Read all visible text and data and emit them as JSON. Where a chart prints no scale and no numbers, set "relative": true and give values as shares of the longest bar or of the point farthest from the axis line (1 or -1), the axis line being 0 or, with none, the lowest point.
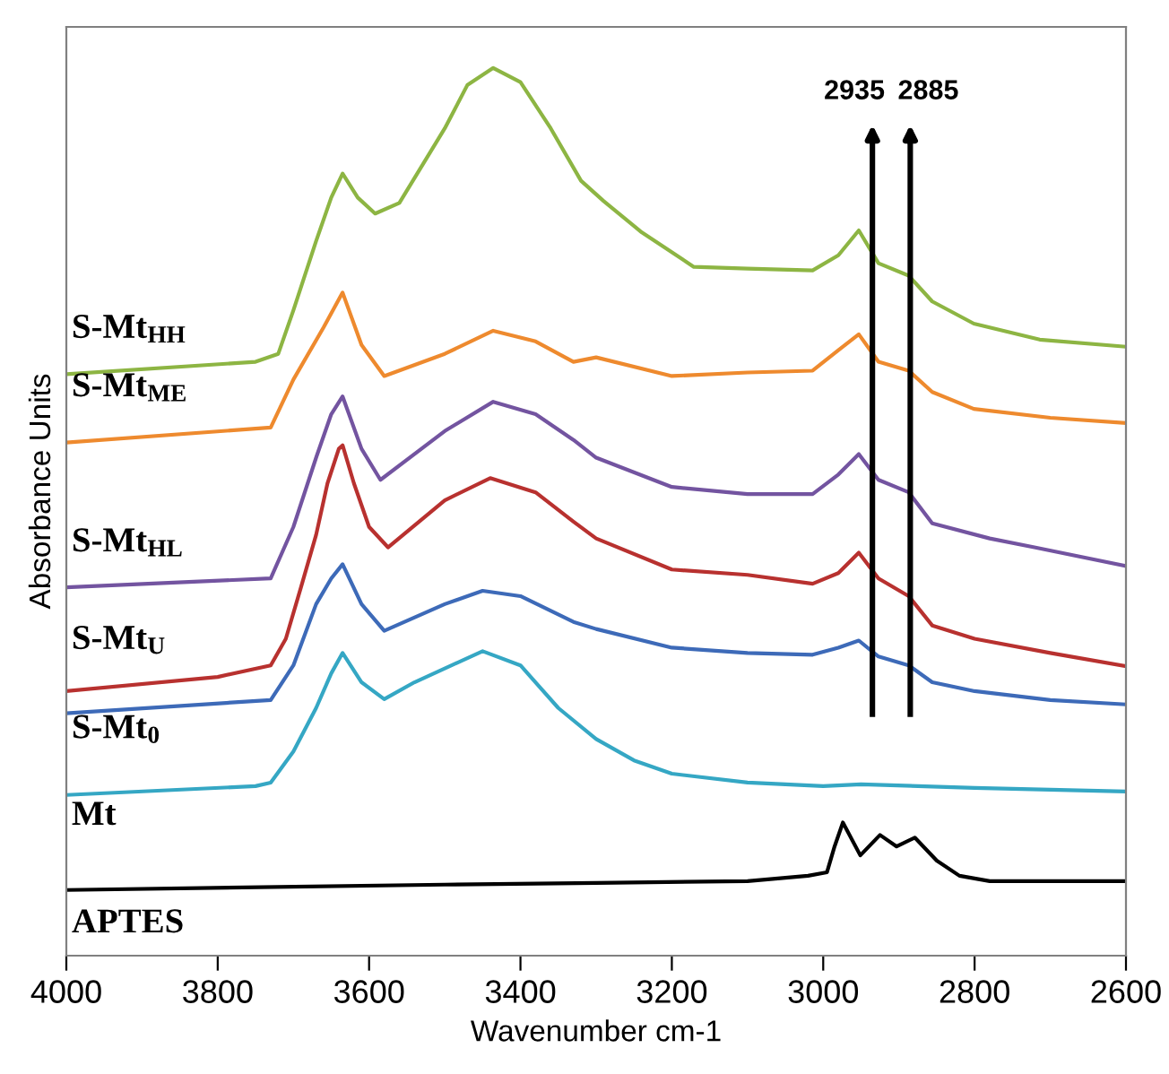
{
  "chart_data": {
    "type": "line",
    "relative": true,
    "xlabel": "Wavenumber cm-1",
    "ylabel": "Absorbance Units",
    "xlim": [
      4000,
      2600
    ],
    "xticks": [
      4000,
      3800,
      3600,
      3400,
      3200,
      3000,
      2800,
      2600
    ],
    "tick_labels": "x",
    "grid": false,
    "marker": "none",
    "line_style": "solid",
    "series": [
      {
        "color": "#8db543",
        "x": [
          4000,
          3750,
          3720,
          3700,
          3670,
          3650,
          3635,
          3615,
          3592,
          3560,
          3500,
          3470,
          3436,
          3400,
          3360,
          3320,
          3290,
          3240,
          3171,
          3100,
          3014,
          2980,
          2953,
          2927,
          2887,
          2856,
          2801,
          2714,
          2600
        ],
        "values": [
          0.655,
          0.669,
          0.678,
          0.727,
          0.805,
          0.854,
          0.881,
          0.854,
          0.836,
          0.848,
          0.932,
          0.981,
          1.0,
          0.984,
          0.932,
          0.873,
          0.85,
          0.815,
          0.776,
          0.774,
          0.772,
          0.789,
          0.817,
          0.78,
          0.766,
          0.737,
          0.712,
          0.694,
          0.686
        ]
      },
      {
        "color": "#ee8a2e",
        "x": [
          4000,
          3730,
          3700,
          3660,
          3635,
          3610,
          3580,
          3500,
          3436,
          3380,
          3330,
          3300,
          3200,
          3100,
          3014,
          2980,
          2953,
          2927,
          2887,
          2856,
          2801,
          2700,
          2600
        ],
        "values": [
          0.578,
          0.595,
          0.649,
          0.708,
          0.747,
          0.688,
          0.653,
          0.678,
          0.704,
          0.692,
          0.669,
          0.674,
          0.653,
          0.657,
          0.659,
          0.682,
          0.7,
          0.669,
          0.659,
          0.635,
          0.616,
          0.606,
          0.6
        ]
      },
      {
        "color": "#7354a0",
        "x": [
          4000,
          3730,
          3700,
          3670,
          3650,
          3635,
          3610,
          3585,
          3500,
          3436,
          3380,
          3330,
          3300,
          3200,
          3100,
          3014,
          2980,
          2953,
          2927,
          2887,
          2856,
          2780,
          2721,
          2600
        ],
        "values": [
          0.415,
          0.425,
          0.483,
          0.561,
          0.61,
          0.63,
          0.571,
          0.536,
          0.591,
          0.624,
          0.61,
          0.581,
          0.561,
          0.528,
          0.52,
          0.52,
          0.542,
          0.565,
          0.536,
          0.522,
          0.487,
          0.47,
          0.46,
          0.439
        ]
      },
      {
        "color": "#b8312f",
        "x": [
          4000,
          3800,
          3730,
          3710,
          3690,
          3670,
          3655,
          3640,
          3635,
          3620,
          3600,
          3575,
          3500,
          3440,
          3380,
          3330,
          3300,
          3200,
          3100,
          3014,
          2980,
          2953,
          2927,
          2887,
          2856,
          2800,
          2700,
          2600
        ],
        "values": [
          0.298,
          0.314,
          0.327,
          0.357,
          0.415,
          0.474,
          0.532,
          0.571,
          0.575,
          0.532,
          0.483,
          0.46,
          0.513,
          0.538,
          0.522,
          0.489,
          0.47,
          0.435,
          0.429,
          0.419,
          0.431,
          0.454,
          0.425,
          0.405,
          0.372,
          0.357,
          0.341,
          0.326
        ]
      },
      {
        "color": "#3d6ab8",
        "x": [
          4000,
          3730,
          3700,
          3670,
          3650,
          3635,
          3610,
          3580,
          3500,
          3450,
          3400,
          3330,
          3300,
          3200,
          3100,
          3014,
          2980,
          2953,
          2927,
          2887,
          2856,
          2800,
          2700,
          2600
        ],
        "values": [
          0.273,
          0.288,
          0.327,
          0.396,
          0.425,
          0.441,
          0.396,
          0.366,
          0.396,
          0.411,
          0.405,
          0.376,
          0.368,
          0.347,
          0.341,
          0.339,
          0.347,
          0.355,
          0.337,
          0.327,
          0.308,
          0.298,
          0.288,
          0.283
        ]
      },
      {
        "color": "#35a7c4",
        "x": [
          4000,
          3750,
          3730,
          3700,
          3670,
          3650,
          3635,
          3610,
          3580,
          3540,
          3450,
          3400,
          3350,
          3300,
          3250,
          3200,
          3100,
          3000,
          2950,
          2800,
          2600
        ],
        "values": [
          0.181,
          0.191,
          0.195,
          0.23,
          0.279,
          0.318,
          0.341,
          0.308,
          0.289,
          0.308,
          0.343,
          0.327,
          0.279,
          0.244,
          0.22,
          0.205,
          0.195,
          0.191,
          0.193,
          0.189,
          0.185
        ]
      },
      {
        "color": "#000000",
        "x": [
          4000,
          3500,
          3300,
          3100,
          3020,
          2995,
          2985,
          2974,
          2951,
          2925,
          2903,
          2879,
          2850,
          2820,
          2780,
          2600
        ],
        "values": [
          0.074,
          0.08,
          0.082,
          0.084,
          0.09,
          0.094,
          0.123,
          0.15,
          0.113,
          0.136,
          0.123,
          0.133,
          0.107,
          0.09,
          0.084,
          0.084
        ]
      }
    ],
    "annotations": [
      "S-Mt$_{HH}$",
      "S-Mt$_{ME}$",
      "S-Mt$_{HL}$",
      "S-Mt$_{U}$",
      "S-Mt$_{0}$",
      "Mt",
      "APTES"
    ],
    "ref_lines": [
      {
        "axis": "x",
        "value": 2935,
        "label": "2935",
        "color": "#000000"
      },
      {
        "axis": "x",
        "value": 2885,
        "label": "2885",
        "color": "#000000"
      }
    ]
  }
}
